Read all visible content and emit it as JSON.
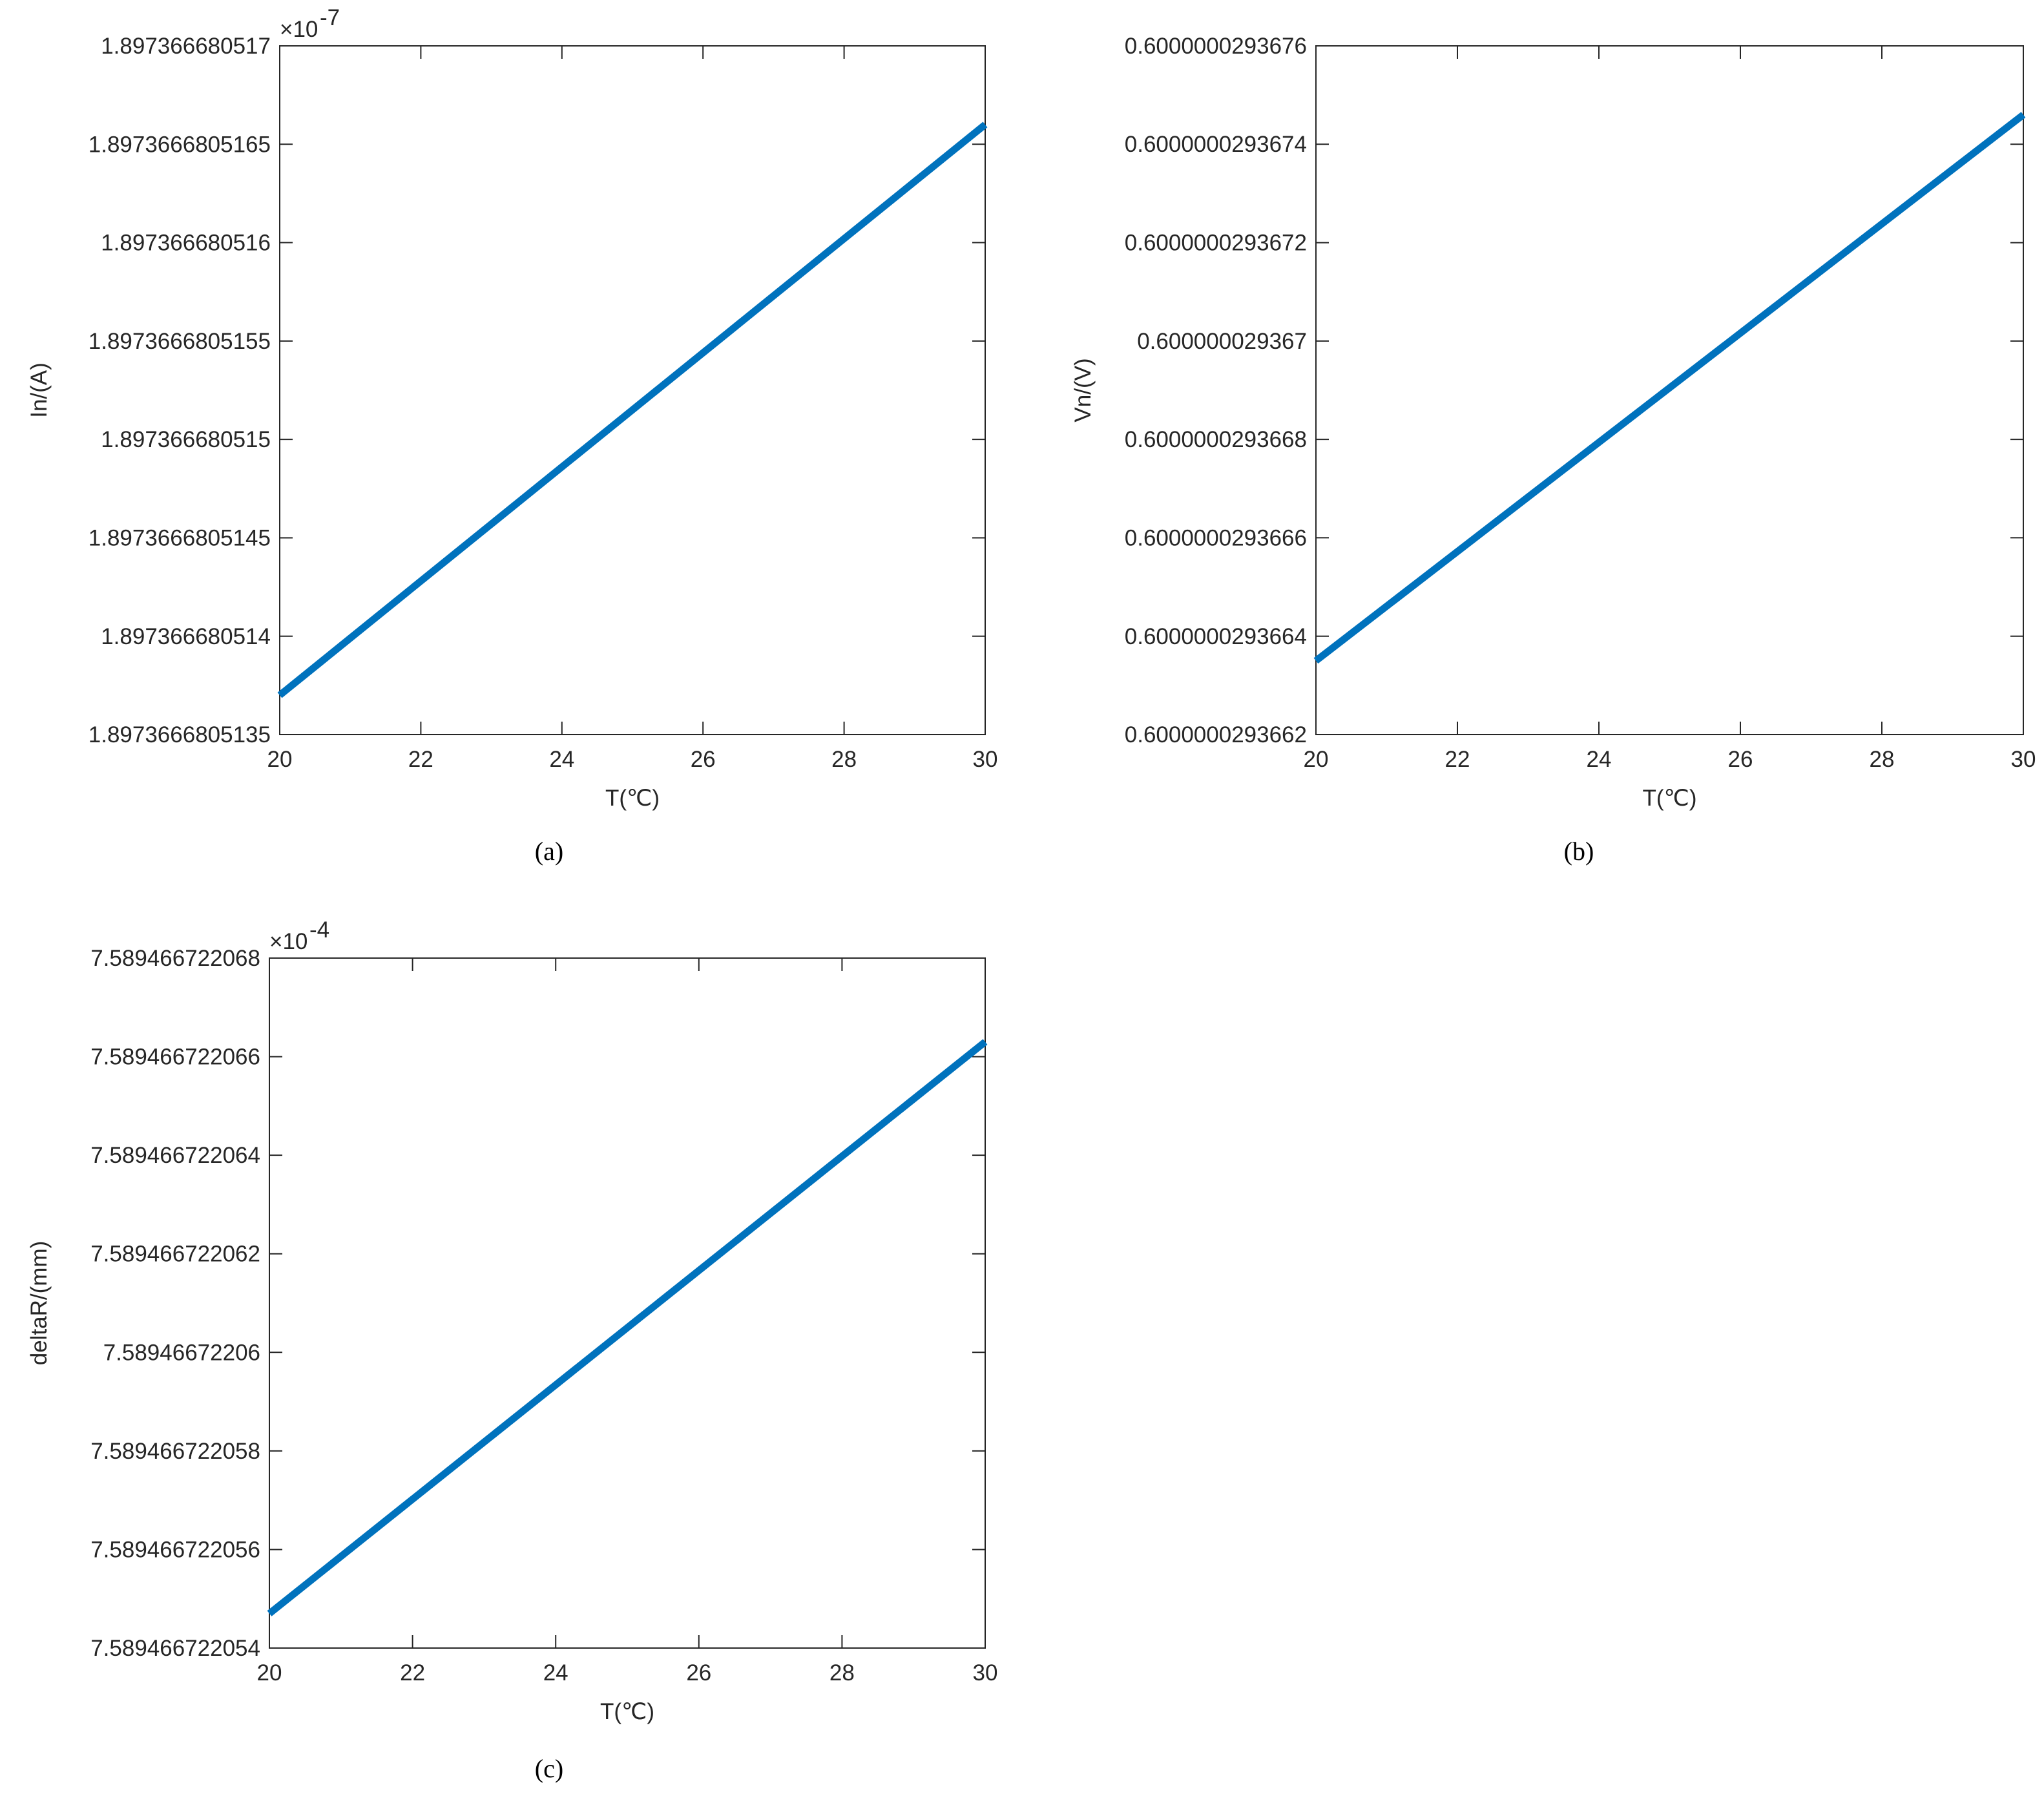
{
  "chart_data": [
    {
      "type": "line",
      "caption": "(a)",
      "xlabel": "T(℃)",
      "ylabel": "In/(A)",
      "y_multiplier": "×10",
      "y_exponent": "-7",
      "x": [
        20,
        30
      ],
      "series": [
        {
          "color": "#0072bd",
          "values": [
            1.8973666805137,
            1.8973666805166
          ]
        }
      ],
      "xlim": [
        20,
        30
      ],
      "xticks": [
        20,
        22,
        24,
        26,
        28,
        30
      ],
      "ylim": [
        1.8973666805135,
        1.897366680517
      ],
      "yticks": [
        1.8973666805135,
        1.897366680514,
        1.8973666805145,
        1.897366680515,
        1.8973666805155,
        1.897366680516,
        1.8973666805165,
        1.897366680517
      ]
    },
    {
      "type": "line",
      "caption": "(b)",
      "xlabel": "T(℃)",
      "ylabel": "Vn/(V)",
      "x": [
        20,
        30
      ],
      "series": [
        {
          "color": "#0072bd",
          "values": [
            0.60000002936635,
            0.60000002936746
          ]
        }
      ],
      "xlim": [
        20,
        30
      ],
      "xticks": [
        20,
        22,
        24,
        26,
        28,
        30
      ],
      "ylim": [
        0.6000000293662,
        0.6000000293676
      ],
      "yticks": [
        0.6000000293662,
        0.6000000293664,
        0.6000000293666,
        0.6000000293668,
        0.600000029367,
        0.6000000293672,
        0.6000000293674,
        0.6000000293676
      ]
    },
    {
      "type": "line",
      "caption": "(c)",
      "xlabel": "T(℃)",
      "ylabel": "deltaR/(mm)",
      "y_multiplier": "×10",
      "y_exponent": "-4",
      "x": [
        20,
        30
      ],
      "series": [
        {
          "color": "#0072bd",
          "values": [
            7.5894667220547,
            7.5894667220663
          ]
        }
      ],
      "xlim": [
        20,
        30
      ],
      "xticks": [
        20,
        22,
        24,
        26,
        28,
        30
      ],
      "ylim": [
        7.589466722054,
        7.589466722068
      ],
      "yticks": [
        7.589466722054,
        7.589466722056,
        7.589466722058,
        7.58946672206,
        7.589466722062,
        7.589466722064,
        7.589466722066,
        7.589466722068
      ]
    }
  ]
}
